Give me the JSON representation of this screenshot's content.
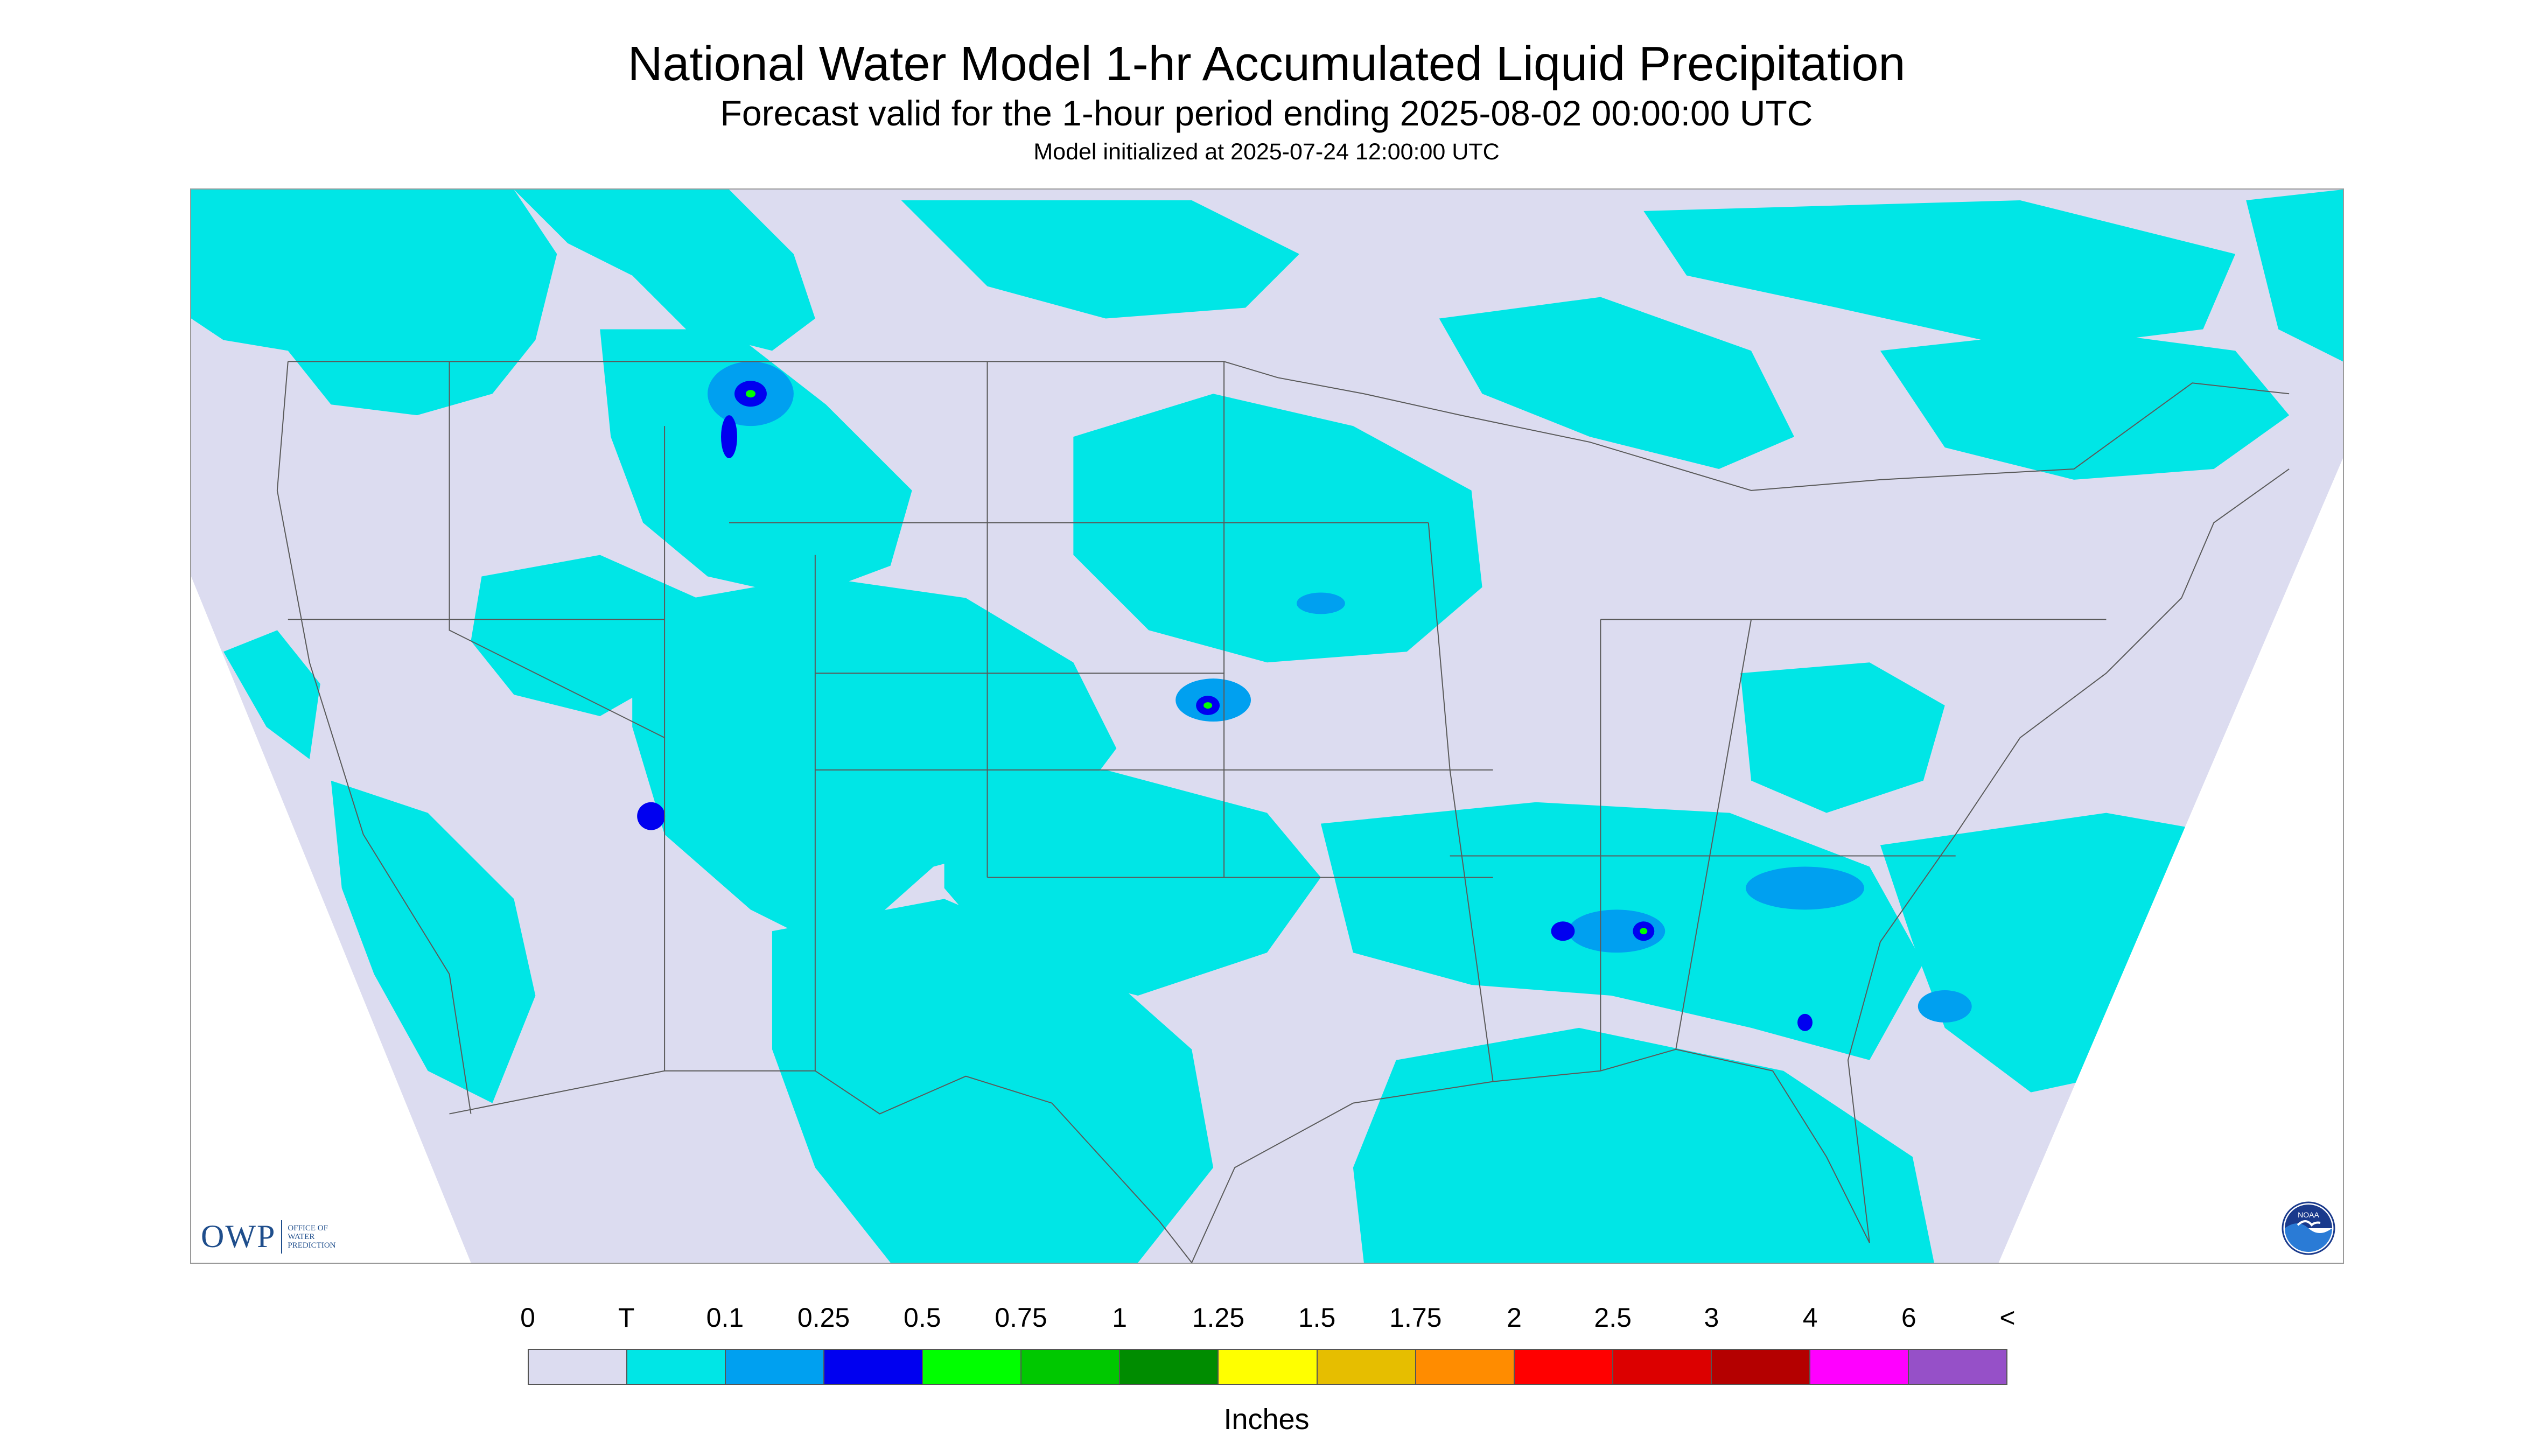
{
  "title": "National Water Model 1-hr Accumulated Liquid Precipitation",
  "subtitle": "Forecast valid for the 1-hour period ending 2025-08-02 00:00:00 UTC",
  "init_line": "Model initialized at 2025-07-24 12:00:00 UTC",
  "logos": {
    "owp_letters": "OWP",
    "owp_text": "OFFICE OF WATER PREDICTION",
    "noaa_text": "NOAA"
  },
  "colors": {
    "outside_domain": "#ffffff",
    "no_precip": "#dcdcf0",
    "boundary_line": "#5a5a5a",
    "trace": "#00e6e6",
    "light": "#00a0f0",
    "moderate": "#0000f0",
    "heavy": "#00ff00"
  },
  "legend": {
    "labels": [
      "0",
      "T",
      "0.1",
      "0.25",
      "0.5",
      "0.75",
      "1",
      "1.25",
      "1.5",
      "1.75",
      "2",
      "2.5",
      "3",
      "4",
      "6",
      "<"
    ],
    "swatches": [
      "#dcdcf0",
      "#00e6e6",
      "#00a0f0",
      "#0000f0",
      "#00ff00",
      "#00c800",
      "#008c00",
      "#ffff00",
      "#e6be00",
      "#ff8c00",
      "#ff0000",
      "#dc0000",
      "#b40000",
      "#ff00ff",
      "#9650c8"
    ],
    "units": "Inches"
  }
}
